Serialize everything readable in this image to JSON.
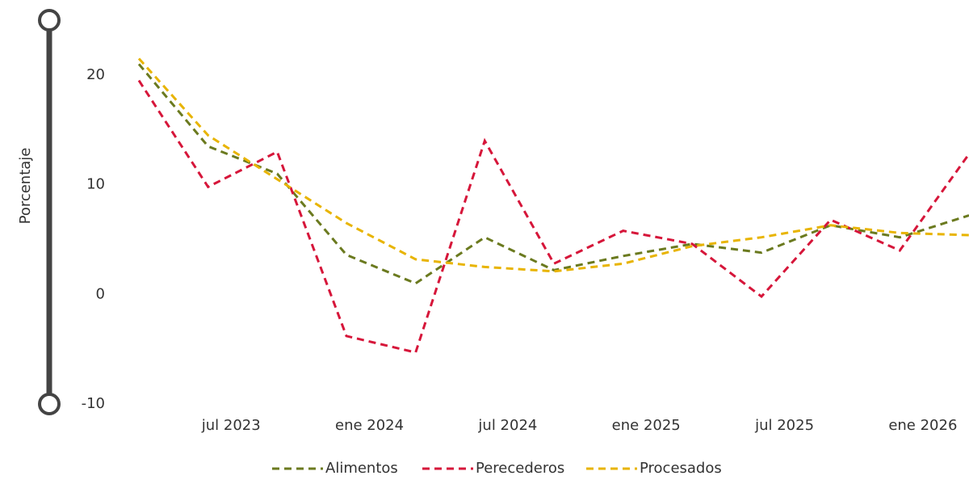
{
  "chart_data": {
    "type": "line",
    "y_label": "Porcentaje",
    "x": [
      "2023-03",
      "2023-06",
      "2023-09",
      "2023-12",
      "2024-03",
      "2024-06",
      "2024-09",
      "2024-12",
      "2025-03",
      "2025-06",
      "2025-09",
      "2025-12",
      "2026-03"
    ],
    "series": [
      {
        "name": "Alimentos",
        "color": "#6b7a1f",
        "values": [
          21,
          13.5,
          11,
          3.6,
          1,
          5.2,
          2.2,
          3.5,
          4.6,
          3.8,
          6.3,
          5.2,
          7.2
        ]
      },
      {
        "name": "Perecederos",
        "color": "#d6163a",
        "values": [
          19.5,
          9.8,
          13,
          -3.8,
          -5.3,
          14,
          2.8,
          5.8,
          4.6,
          -0.2,
          6.8,
          4,
          12.8
        ]
      },
      {
        "name": "Procesados",
        "color": "#e8b400",
        "values": [
          21.5,
          14.5,
          10.5,
          6.5,
          3.2,
          2.5,
          2.1,
          2.8,
          4.4,
          5.2,
          6.3,
          5.6,
          5.4
        ]
      }
    ],
    "xlim": [
      "2023-03",
      "2026-03"
    ],
    "xticks": [
      {
        "value": "2023-07",
        "label": "jul 2023"
      },
      {
        "value": "2024-01",
        "label": "ene 2024"
      },
      {
        "value": "2024-07",
        "label": "jul 2024"
      },
      {
        "value": "2025-01",
        "label": "ene 2025"
      },
      {
        "value": "2025-07",
        "label": "jul 2025"
      },
      {
        "value": "2026-01",
        "label": "ene 2026"
      }
    ],
    "ylim": [
      -10,
      25
    ],
    "yticks": [
      -10,
      0,
      10,
      20
    ],
    "grid": false,
    "legend": "bottom"
  }
}
